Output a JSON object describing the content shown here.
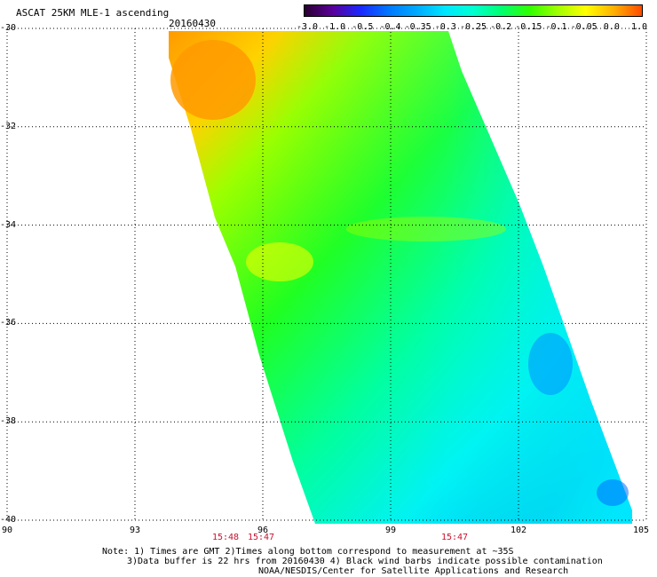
{
  "title": "ASCAT 25KM MLE-1 ascending",
  "date": "20160430",
  "colorbar": {
    "ticks": [
      "-3.0",
      "-1.0",
      "-0.5",
      "-0.4",
      "-0.35",
      "-0.3",
      "-0.25",
      "-0.2",
      "-0.15",
      "-0.1",
      "-0.05",
      "0.0",
      "1.0"
    ],
    "colors": [
      "#2a0030",
      "#5a009a",
      "#1a28ff",
      "#0078ff",
      "#00aaff",
      "#00e6ff",
      "#00ffd0",
      "#00ff70",
      "#30ff00",
      "#a0ff00",
      "#ffff00",
      "#ffb000",
      "#ff4a00"
    ]
  },
  "map": {
    "lat_labels": [
      "-30",
      "-32",
      "-34",
      "-36",
      "-38",
      "-40"
    ],
    "lon_labels": [
      "90",
      "93",
      "96",
      "99",
      "102",
      "105"
    ],
    "time_labels": [
      "15:48",
      "15:47",
      "15:47"
    ],
    "lat_range": [
      -40,
      -30
    ],
    "lon_range": [
      90,
      105
    ]
  },
  "notes": {
    "line1": "Note: 1) Times are GMT 2)Times along bottom correspond to measurement at ~35S",
    "line2": "3)Data buffer is 22 hrs from 20160430 4) Black wind barbs indicate possible contamination",
    "line3": "NOAA/NESDIS/Center for Satellite Applications and Research"
  }
}
